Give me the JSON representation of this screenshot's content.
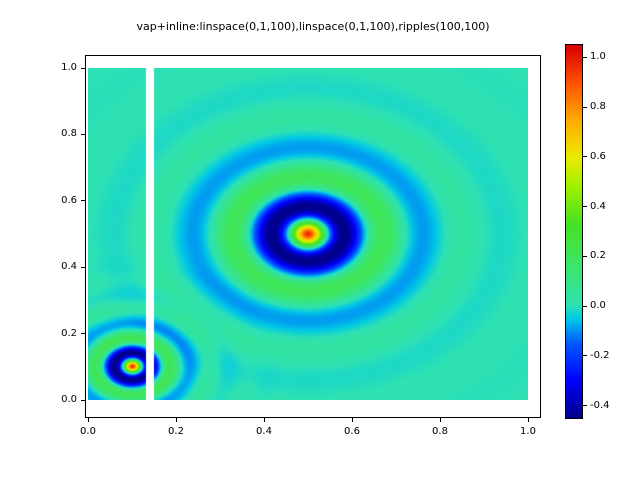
{
  "figure": {
    "title": "vap+inline:linspace(0,1,100),linspace(0,1,100),ripples(100,100)"
  },
  "chart_data": {
    "type": "heatmap",
    "title": "vap+inline:linspace(0,1,100),linspace(0,1,100),ripples(100,100)",
    "grid_shape": [
      100,
      100
    ],
    "x": {
      "label": "",
      "range": [
        0,
        1
      ],
      "ticks": [
        "0.0",
        "0.2",
        "0.4",
        "0.6",
        "0.8",
        "1.0"
      ]
    },
    "y": {
      "label": "",
      "range": [
        0,
        1
      ],
      "ticks": [
        "0.0",
        "0.2",
        "0.4",
        "0.6",
        "0.8",
        "1.0"
      ]
    },
    "values_description": "ripples(100,100): zero-valued background with two damped radial cosine ripples; z = sum amplitude*cos(wavenumber*r)*exp(-decay*r)",
    "ripples": [
      {
        "center": [
          0.5,
          0.5
        ],
        "amplitude": 1.0,
        "wavenumber": 35,
        "decay": 9
      },
      {
        "center": [
          0.1,
          0.1
        ],
        "amplitude": 1.0,
        "wavenumber": 70,
        "decay": 18
      }
    ],
    "masked_x_band": [
      0.13,
      0.15
    ],
    "background_value": 0.0,
    "legend": "none",
    "grid_lines": "off",
    "colorbar": {
      "position": "right",
      "vmin": -0.45,
      "vmax": 1.05,
      "ticks": [
        "1.0",
        "0.8",
        "0.6",
        "0.4",
        "0.2",
        "0.0",
        "-0.2",
        "-0.4"
      ],
      "tick_values": [
        1.0,
        0.8,
        0.6,
        0.4,
        0.2,
        0.0,
        -0.2,
        -0.4
      ]
    },
    "colormap": "rainbow (navy-blue-cyan-turquoise-green-yellow-orange-red)",
    "colormap_stops": [
      [
        0.0,
        [
          0,
          0,
          140
        ]
      ],
      [
        0.1,
        [
          0,
          0,
          255
        ]
      ],
      [
        0.2,
        [
          0,
          90,
          255
        ]
      ],
      [
        0.265,
        [
          0,
          200,
          230
        ]
      ],
      [
        0.3,
        [
          45,
          225,
          180
        ]
      ],
      [
        0.4,
        [
          60,
          230,
          110
        ]
      ],
      [
        0.52,
        [
          70,
          225,
          35
        ]
      ],
      [
        0.62,
        [
          160,
          240,
          0
        ]
      ],
      [
        0.7,
        [
          235,
          235,
          0
        ]
      ],
      [
        0.8,
        [
          255,
          170,
          0
        ]
      ],
      [
        0.9,
        [
          255,
          80,
          0
        ]
      ],
      [
        1.0,
        [
          215,
          0,
          0
        ]
      ]
    ]
  }
}
